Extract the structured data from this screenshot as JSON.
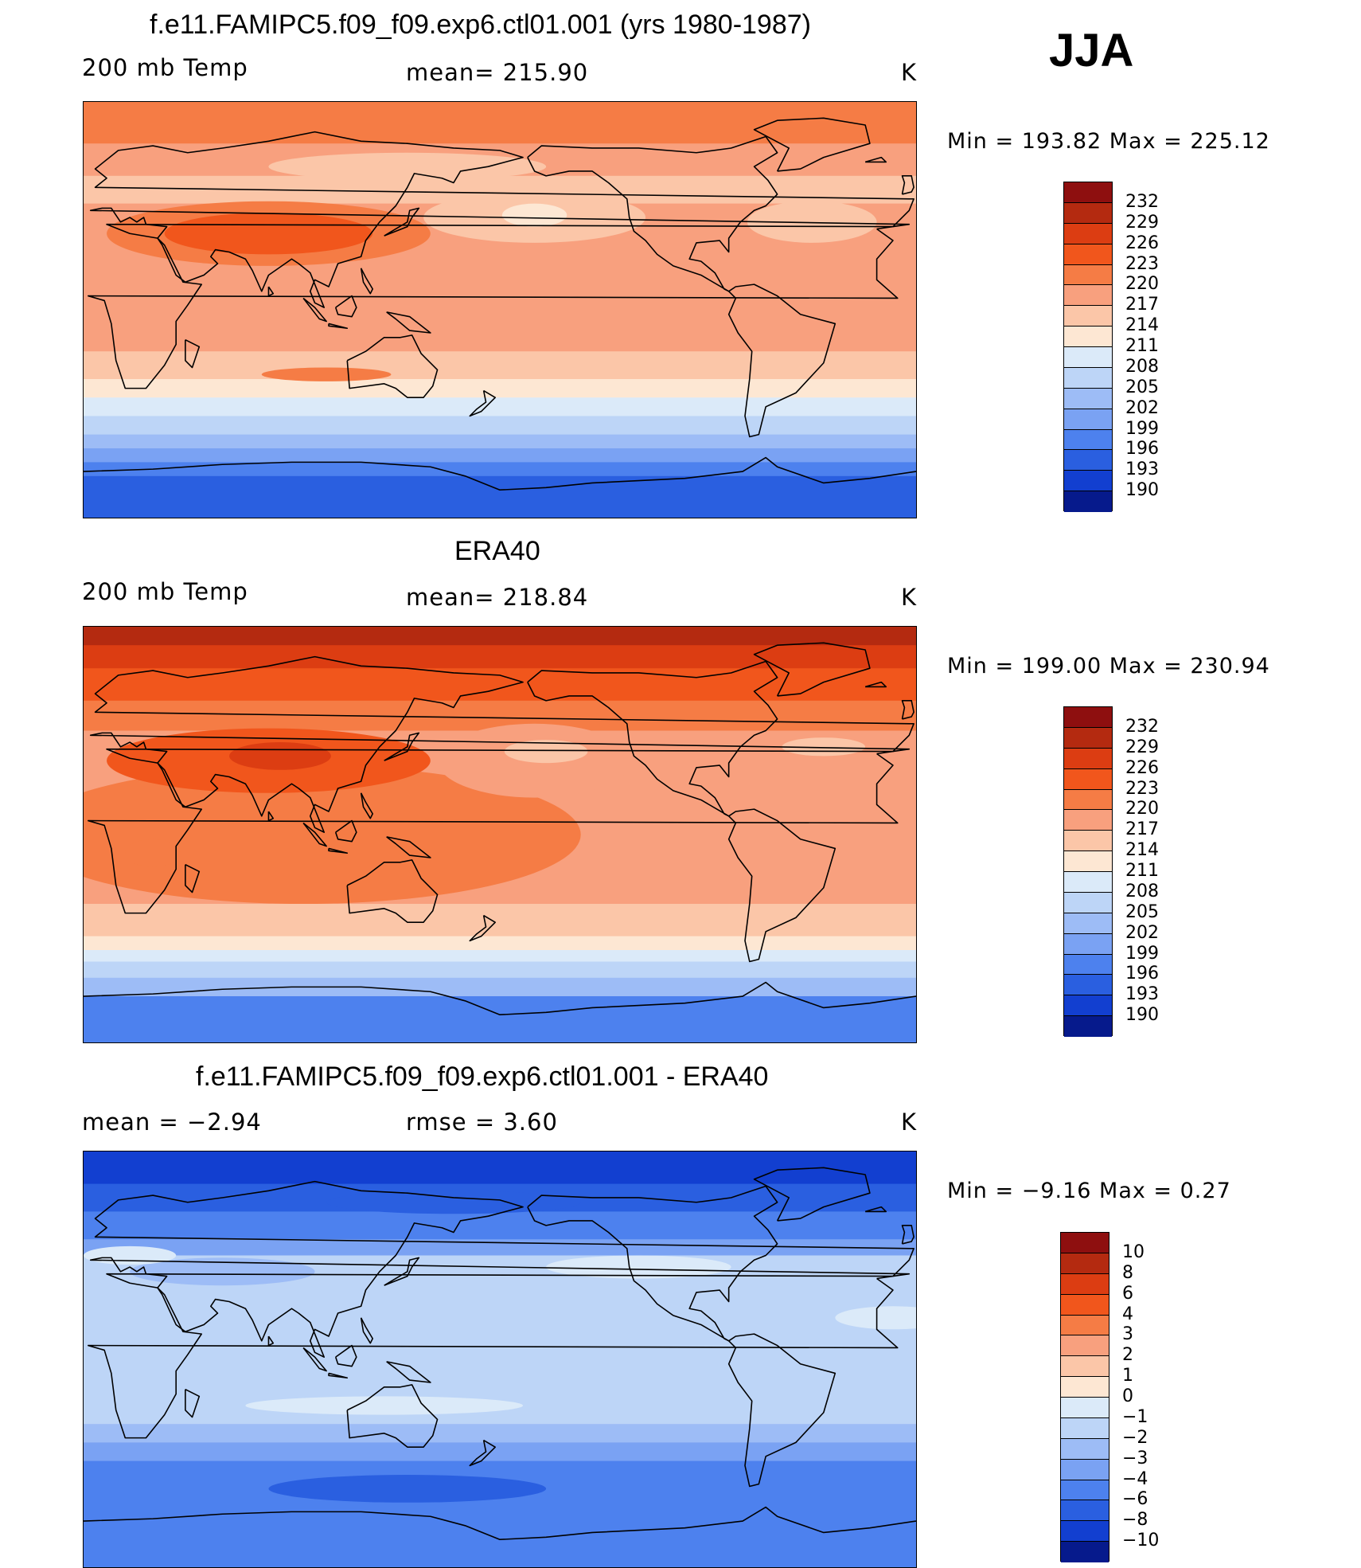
{
  "season": "JJA",
  "panels": [
    {
      "id": "model",
      "title": "f.e11.FAMIPC5.f09_f09.exp6.ctl01.001 (yrs 1980-1987)",
      "left_label": "200 mb Temp",
      "center_label": "mean=  215.90",
      "units": "K",
      "min_max": "Min  =  193.82  Max  =  225.12",
      "colorbar_labels": [
        "232",
        "229",
        "226",
        "223",
        "220",
        "217",
        "214",
        "211",
        "208",
        "205",
        "202",
        "199",
        "196",
        "193",
        "190"
      ],
      "colorbar_colors": [
        "#8e0f0f",
        "#b42a10",
        "#dc3d12",
        "#f1561c",
        "#f57c45",
        "#f8a07e",
        "#fbc6a8",
        "#fde7d3",
        "#dbeaf9",
        "#bdd5f7",
        "#9dbcf6",
        "#7aa2f3",
        "#4d81ee",
        "#2a5fe0",
        "#123fd0",
        "#061a8c"
      ],
      "bands": [
        {
          "lat_top": 90,
          "lat_bot": 72,
          "color": "#f57c45"
        },
        {
          "lat_top": 72,
          "lat_bot": 58,
          "color": "#f8a07e"
        },
        {
          "lat_top": 58,
          "lat_bot": 46,
          "color": "#fbc6a8"
        },
        {
          "lat_top": 46,
          "lat_bot": 12,
          "color": "#f8a07e"
        },
        {
          "lat_top": 12,
          "lat_bot": -18,
          "color": "#f8a07e"
        },
        {
          "lat_top": -18,
          "lat_bot": -30,
          "color": "#fbc6a8"
        },
        {
          "lat_top": -30,
          "lat_bot": -38,
          "color": "#fde7d3"
        },
        {
          "lat_top": -38,
          "lat_bot": -46,
          "color": "#dbeaf9"
        },
        {
          "lat_top": -46,
          "lat_bot": -54,
          "color": "#bdd5f7"
        },
        {
          "lat_top": -54,
          "lat_bot": -60,
          "color": "#9dbcf6"
        },
        {
          "lat_top": -60,
          "lat_bot": -66,
          "color": "#7aa2f3"
        },
        {
          "lat_top": -66,
          "lat_bot": -72,
          "color": "#4d81ee"
        },
        {
          "lat_top": -72,
          "lat_bot": -90,
          "color": "#2a5fe0"
        }
      ],
      "blobs": [
        {
          "lon": 80,
          "lat": 33,
          "rx": 70,
          "ry": 14,
          "color": "#f57c45"
        },
        {
          "lon": 80,
          "lat": 33,
          "rx": 45,
          "ry": 9,
          "color": "#f1561c"
        },
        {
          "lon": 195,
          "lat": 40,
          "rx": 48,
          "ry": 11,
          "color": "#fbc6a8"
        },
        {
          "lon": 195,
          "lat": 41,
          "rx": 14,
          "ry": 5,
          "color": "#fde7d3"
        },
        {
          "lon": 315,
          "lat": 38,
          "rx": 28,
          "ry": 9,
          "color": "#fbc6a8"
        },
        {
          "lon": 105,
          "lat": -28,
          "rx": 28,
          "ry": 3,
          "color": "#f57c45"
        },
        {
          "lon": 140,
          "lat": 62,
          "rx": 60,
          "ry": 6,
          "color": "#fbc6a8"
        }
      ]
    },
    {
      "id": "obs",
      "title": "ERA40",
      "left_label": "200 mb Temp",
      "center_label": "mean=  218.84",
      "units": "K",
      "min_max": "Min  =  199.00  Max  =  230.94",
      "colorbar_labels": [
        "232",
        "229",
        "226",
        "223",
        "220",
        "217",
        "214",
        "211",
        "208",
        "205",
        "202",
        "199",
        "196",
        "193",
        "190"
      ],
      "colorbar_colors": [
        "#8e0f0f",
        "#b42a10",
        "#dc3d12",
        "#f1561c",
        "#f57c45",
        "#f8a07e",
        "#fbc6a8",
        "#fde7d3",
        "#dbeaf9",
        "#bdd5f7",
        "#9dbcf6",
        "#7aa2f3",
        "#4d81ee",
        "#2a5fe0",
        "#123fd0",
        "#061a8c"
      ],
      "bands": [
        {
          "lat_top": 90,
          "lat_bot": 82,
          "color": "#b42a10"
        },
        {
          "lat_top": 82,
          "lat_bot": 72,
          "color": "#dc3d12"
        },
        {
          "lat_top": 72,
          "lat_bot": 58,
          "color": "#f1561c"
        },
        {
          "lat_top": 58,
          "lat_bot": 45,
          "color": "#f57c45"
        },
        {
          "lat_top": 45,
          "lat_bot": -18,
          "color": "#f8a07e"
        },
        {
          "lat_top": -18,
          "lat_bot": -30,
          "color": "#f8a07e"
        },
        {
          "lat_top": -30,
          "lat_bot": -44,
          "color": "#fbc6a8"
        },
        {
          "lat_top": -44,
          "lat_bot": -50,
          "color": "#fde7d3"
        },
        {
          "lat_top": -50,
          "lat_bot": -55,
          "color": "#dbeaf9"
        },
        {
          "lat_top": -55,
          "lat_bot": -62,
          "color": "#bdd5f7"
        },
        {
          "lat_top": -62,
          "lat_bot": -70,
          "color": "#9dbcf6"
        },
        {
          "lat_top": -70,
          "lat_bot": -90,
          "color": "#4d81ee"
        }
      ],
      "blobs": [
        {
          "lon": 95,
          "lat": 0,
          "rx": 120,
          "ry": 30,
          "color": "#f57c45"
        },
        {
          "lon": 80,
          "lat": 32,
          "rx": 70,
          "ry": 14,
          "color": "#f1561c"
        },
        {
          "lon": 85,
          "lat": 34,
          "rx": 22,
          "ry": 6,
          "color": "#dc3d12"
        },
        {
          "lon": 195,
          "lat": 32,
          "rx": 42,
          "ry": 16,
          "color": "#f8a07e"
        },
        {
          "lon": 200,
          "lat": 36,
          "rx": 18,
          "ry": 5,
          "color": "#fbc6a8"
        },
        {
          "lon": 320,
          "lat": 38,
          "rx": 18,
          "ry": 4,
          "color": "#fbc6a8"
        },
        {
          "lon": 30,
          "lat": -8,
          "rx": 12,
          "ry": 6,
          "color": "#f57c45"
        }
      ]
    },
    {
      "id": "diff",
      "title": "f.e11.FAMIPC5.f09_f09.exp6.ctl01.001 - ERA40",
      "left_label": "mean  =    −2.94",
      "center_label": "rmse  =     3.60",
      "units": "K",
      "min_max": "Min  =    −9.16  Max  =      0.27",
      "colorbar_labels": [
        "10",
        "8",
        "6",
        "4",
        "3",
        "2",
        "1",
        "0",
        "−1",
        "−2",
        "−3",
        "−4",
        "−6",
        "−8",
        "−10"
      ],
      "colorbar_colors": [
        "#8e0f0f",
        "#b42a10",
        "#dc3d12",
        "#f1561c",
        "#f57c45",
        "#f8a07e",
        "#fbc6a8",
        "#fde7d3",
        "#dbeaf9",
        "#bdd5f7",
        "#9dbcf6",
        "#7aa2f3",
        "#4d81ee",
        "#2a5fe0",
        "#123fd0",
        "#061a8c"
      ],
      "bands": [
        {
          "lat_top": 90,
          "lat_bot": 76,
          "color": "#123fd0"
        },
        {
          "lat_top": 76,
          "lat_bot": 64,
          "color": "#2a5fe0"
        },
        {
          "lat_top": 64,
          "lat_bot": 52,
          "color": "#4d81ee"
        },
        {
          "lat_top": 52,
          "lat_bot": 45,
          "color": "#7aa2f3"
        },
        {
          "lat_top": 45,
          "lat_bot": -28,
          "color": "#bdd5f7"
        },
        {
          "lat_top": -28,
          "lat_bot": -36,
          "color": "#9dbcf6"
        },
        {
          "lat_top": -36,
          "lat_bot": -44,
          "color": "#7aa2f3"
        },
        {
          "lat_top": -44,
          "lat_bot": -90,
          "color": "#4d81ee"
        }
      ],
      "blobs": [
        {
          "lon": 60,
          "lat": 38,
          "rx": 40,
          "ry": 6,
          "color": "#9dbcf6"
        },
        {
          "lon": 20,
          "lat": 45,
          "rx": 20,
          "ry": 4,
          "color": "#dbeaf9"
        },
        {
          "lon": 240,
          "lat": 40,
          "rx": 40,
          "ry": 5,
          "color": "#dbeaf9"
        },
        {
          "lon": 130,
          "lat": -20,
          "rx": 60,
          "ry": 4,
          "color": "#dbeaf9"
        },
        {
          "lon": 140,
          "lat": -56,
          "rx": 60,
          "ry": 6,
          "color": "#2a5fe0"
        },
        {
          "lon": 160,
          "lat": 68,
          "rx": 55,
          "ry": 5,
          "color": "#2a5fe0"
        },
        {
          "lon": 350,
          "lat": 18,
          "rx": 25,
          "ry": 5,
          "color": "#dbeaf9"
        }
      ]
    }
  ]
}
